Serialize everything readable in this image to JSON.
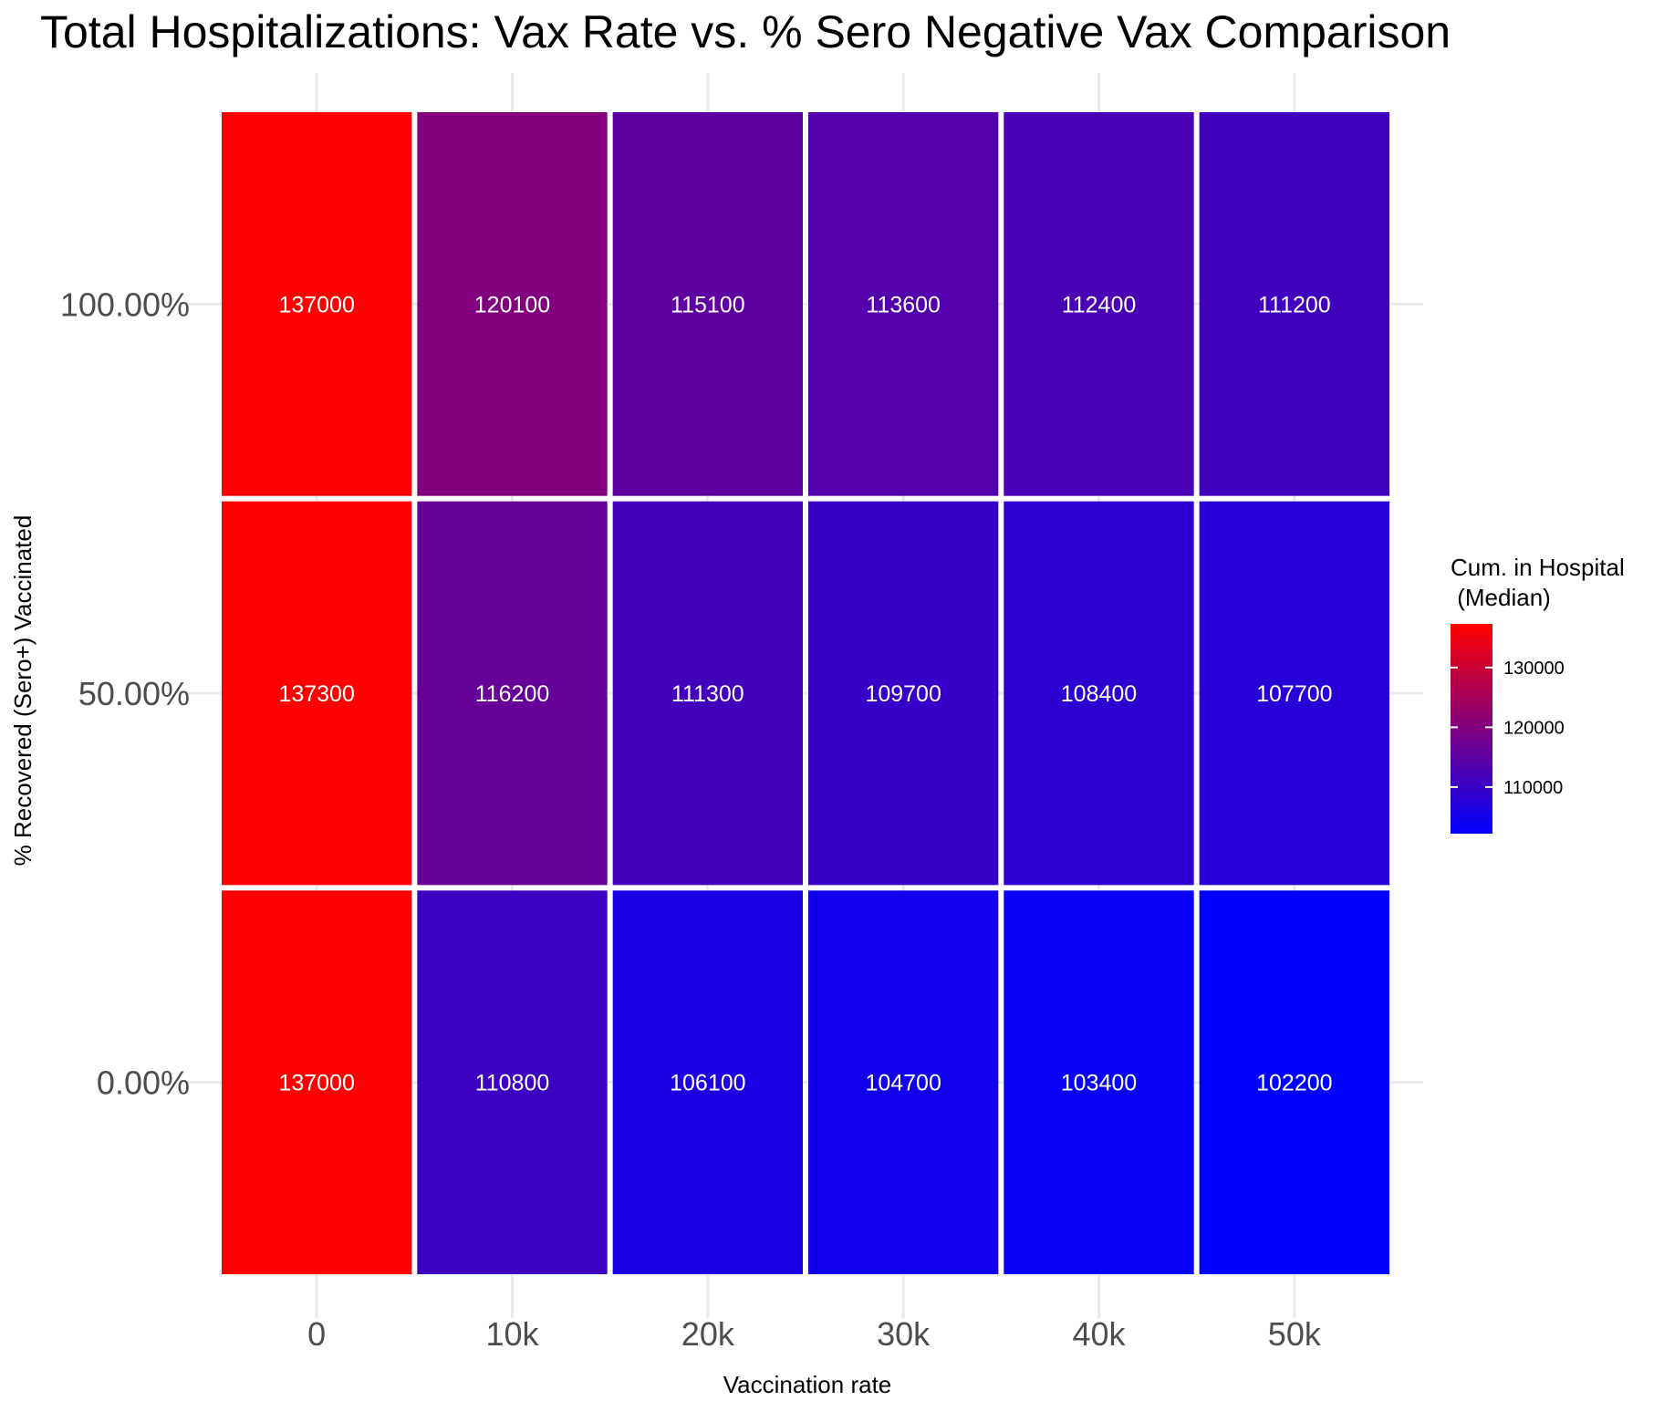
{
  "chart_data": {
    "type": "heatmap",
    "title": "Total Hospitalizations: Vax Rate vs. % Sero Negative Vax Comparison",
    "xlabel": "Vaccination rate",
    "ylabel": "% Recovered (Sero+) Vaccinated",
    "x_categories": [
      "0",
      "10k",
      "20k",
      "30k",
      "40k",
      "50k"
    ],
    "y_categories": [
      "100.00%",
      "50.00%",
      "0.00%"
    ],
    "values": [
      [
        137000,
        120100,
        115100,
        113600,
        112400,
        111200
      ],
      [
        137300,
        116200,
        111300,
        109700,
        108400,
        107700
      ],
      [
        137000,
        110800,
        106100,
        104700,
        103400,
        102200
      ]
    ],
    "legend": {
      "title_line1": "Cum. in Hospital",
      "title_line2": " (Median)",
      "ticks": [
        130000,
        120000,
        110000
      ],
      "range": [
        102200,
        137300
      ],
      "low_color": "#0000ff",
      "high_color": "#ff0000"
    },
    "grid": true,
    "legend_position": "right"
  }
}
